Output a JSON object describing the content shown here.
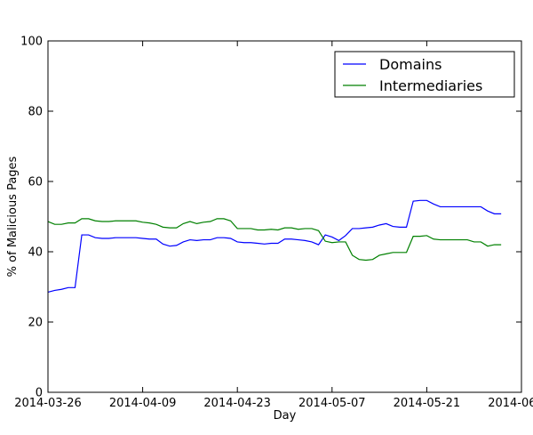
{
  "chart_data": {
    "type": "line",
    "title": "",
    "xlabel": "Day",
    "ylabel": "% of Malicious Pages",
    "xlim": [
      "2014-03-26",
      "2014-06-04"
    ],
    "ylim": [
      0,
      100
    ],
    "x_ticks": [
      "2014-03-26",
      "2014-04-09",
      "2014-04-23",
      "2014-05-07",
      "2014-05-21",
      "2014-06-04"
    ],
    "y_ticks": [
      0,
      20,
      40,
      60,
      80,
      100
    ],
    "grid": false,
    "legend_position": "top-right",
    "series": [
      {
        "name": "Domains",
        "color": "#0000ff",
        "x": [
          "2014-03-26",
          "2014-03-27",
          "2014-03-28",
          "2014-03-29",
          "2014-03-30",
          "2014-03-31",
          "2014-04-01",
          "2014-04-02",
          "2014-04-03",
          "2014-04-04",
          "2014-04-05",
          "2014-04-06",
          "2014-04-07",
          "2014-04-08",
          "2014-04-09",
          "2014-04-10",
          "2014-04-11",
          "2014-04-12",
          "2014-04-13",
          "2014-04-14",
          "2014-04-15",
          "2014-04-16",
          "2014-04-17",
          "2014-04-18",
          "2014-04-19",
          "2014-04-20",
          "2014-04-21",
          "2014-04-22",
          "2014-04-23",
          "2014-04-24",
          "2014-04-25",
          "2014-04-26",
          "2014-04-27",
          "2014-04-28",
          "2014-04-29",
          "2014-04-30",
          "2014-05-01",
          "2014-05-02",
          "2014-05-03",
          "2014-05-04",
          "2014-05-05",
          "2014-05-06",
          "2014-05-07",
          "2014-05-08",
          "2014-05-09",
          "2014-05-10",
          "2014-05-11",
          "2014-05-12",
          "2014-05-13",
          "2014-05-14",
          "2014-05-15",
          "2014-05-16",
          "2014-05-17",
          "2014-05-18",
          "2014-05-19",
          "2014-05-20",
          "2014-05-21",
          "2014-05-22",
          "2014-05-23",
          "2014-05-24",
          "2014-05-25",
          "2014-05-26",
          "2014-05-27",
          "2014-05-28",
          "2014-05-29",
          "2014-05-30",
          "2014-05-31",
          "2014-06-01"
        ],
        "values": [
          28.5,
          29,
          29.3,
          29.8,
          29.8,
          44.8,
          44.8,
          44,
          43.8,
          43.8,
          44,
          44,
          44,
          44,
          43.8,
          43.6,
          43.6,
          42.2,
          41.6,
          41.8,
          42.8,
          43.4,
          43.2,
          43.4,
          43.4,
          44,
          44,
          43.8,
          42.8,
          42.6,
          42.6,
          42.4,
          42.2,
          42.4,
          42.4,
          43.6,
          43.6,
          43.4,
          43.2,
          42.8,
          42,
          44.8,
          44.2,
          43.2,
          44.6,
          46.6,
          46.6,
          46.8,
          47,
          47.6,
          48,
          47.2,
          47,
          47,
          54.4,
          54.6,
          54.6,
          53.6,
          52.8,
          52.8,
          52.8,
          52.8,
          52.8,
          52.8,
          52.8,
          51.6,
          50.8,
          50.8
        ]
      },
      {
        "name": "Intermediaries",
        "color": "#008000",
        "x": [
          "2014-03-26",
          "2014-03-27",
          "2014-03-28",
          "2014-03-29",
          "2014-03-30",
          "2014-03-31",
          "2014-04-01",
          "2014-04-02",
          "2014-04-03",
          "2014-04-04",
          "2014-04-05",
          "2014-04-06",
          "2014-04-07",
          "2014-04-08",
          "2014-04-09",
          "2014-04-10",
          "2014-04-11",
          "2014-04-12",
          "2014-04-13",
          "2014-04-14",
          "2014-04-15",
          "2014-04-16",
          "2014-04-17",
          "2014-04-18",
          "2014-04-19",
          "2014-04-20",
          "2014-04-21",
          "2014-04-22",
          "2014-04-23",
          "2014-04-24",
          "2014-04-25",
          "2014-04-26",
          "2014-04-27",
          "2014-04-28",
          "2014-04-29",
          "2014-04-30",
          "2014-05-01",
          "2014-05-02",
          "2014-05-03",
          "2014-05-04",
          "2014-05-05",
          "2014-05-06",
          "2014-05-07",
          "2014-05-08",
          "2014-05-09",
          "2014-05-10",
          "2014-05-11",
          "2014-05-12",
          "2014-05-13",
          "2014-05-14",
          "2014-05-15",
          "2014-05-16",
          "2014-05-17",
          "2014-05-18",
          "2014-05-19",
          "2014-05-20",
          "2014-05-21",
          "2014-05-22",
          "2014-05-23",
          "2014-05-24",
          "2014-05-25",
          "2014-05-26",
          "2014-05-27",
          "2014-05-28",
          "2014-05-29",
          "2014-05-30",
          "2014-05-31",
          "2014-06-01"
        ],
        "values": [
          48.6,
          47.8,
          47.8,
          48.2,
          48.2,
          49.4,
          49.4,
          48.8,
          48.6,
          48.6,
          48.8,
          48.8,
          48.8,
          48.8,
          48.4,
          48.2,
          47.8,
          47,
          46.8,
          46.8,
          48,
          48.6,
          48,
          48.4,
          48.6,
          49.4,
          49.4,
          48.8,
          46.6,
          46.6,
          46.6,
          46.2,
          46.2,
          46.4,
          46.2,
          46.8,
          46.8,
          46.4,
          46.6,
          46.6,
          46,
          43,
          42.6,
          42.8,
          42.8,
          39,
          37.8,
          37.6,
          37.8,
          39,
          39.4,
          39.8,
          39.8,
          39.8,
          44.4,
          44.4,
          44.6,
          43.6,
          43.4,
          43.4,
          43.4,
          43.4,
          43.4,
          42.8,
          42.8,
          41.6,
          42,
          42
        ]
      }
    ]
  }
}
